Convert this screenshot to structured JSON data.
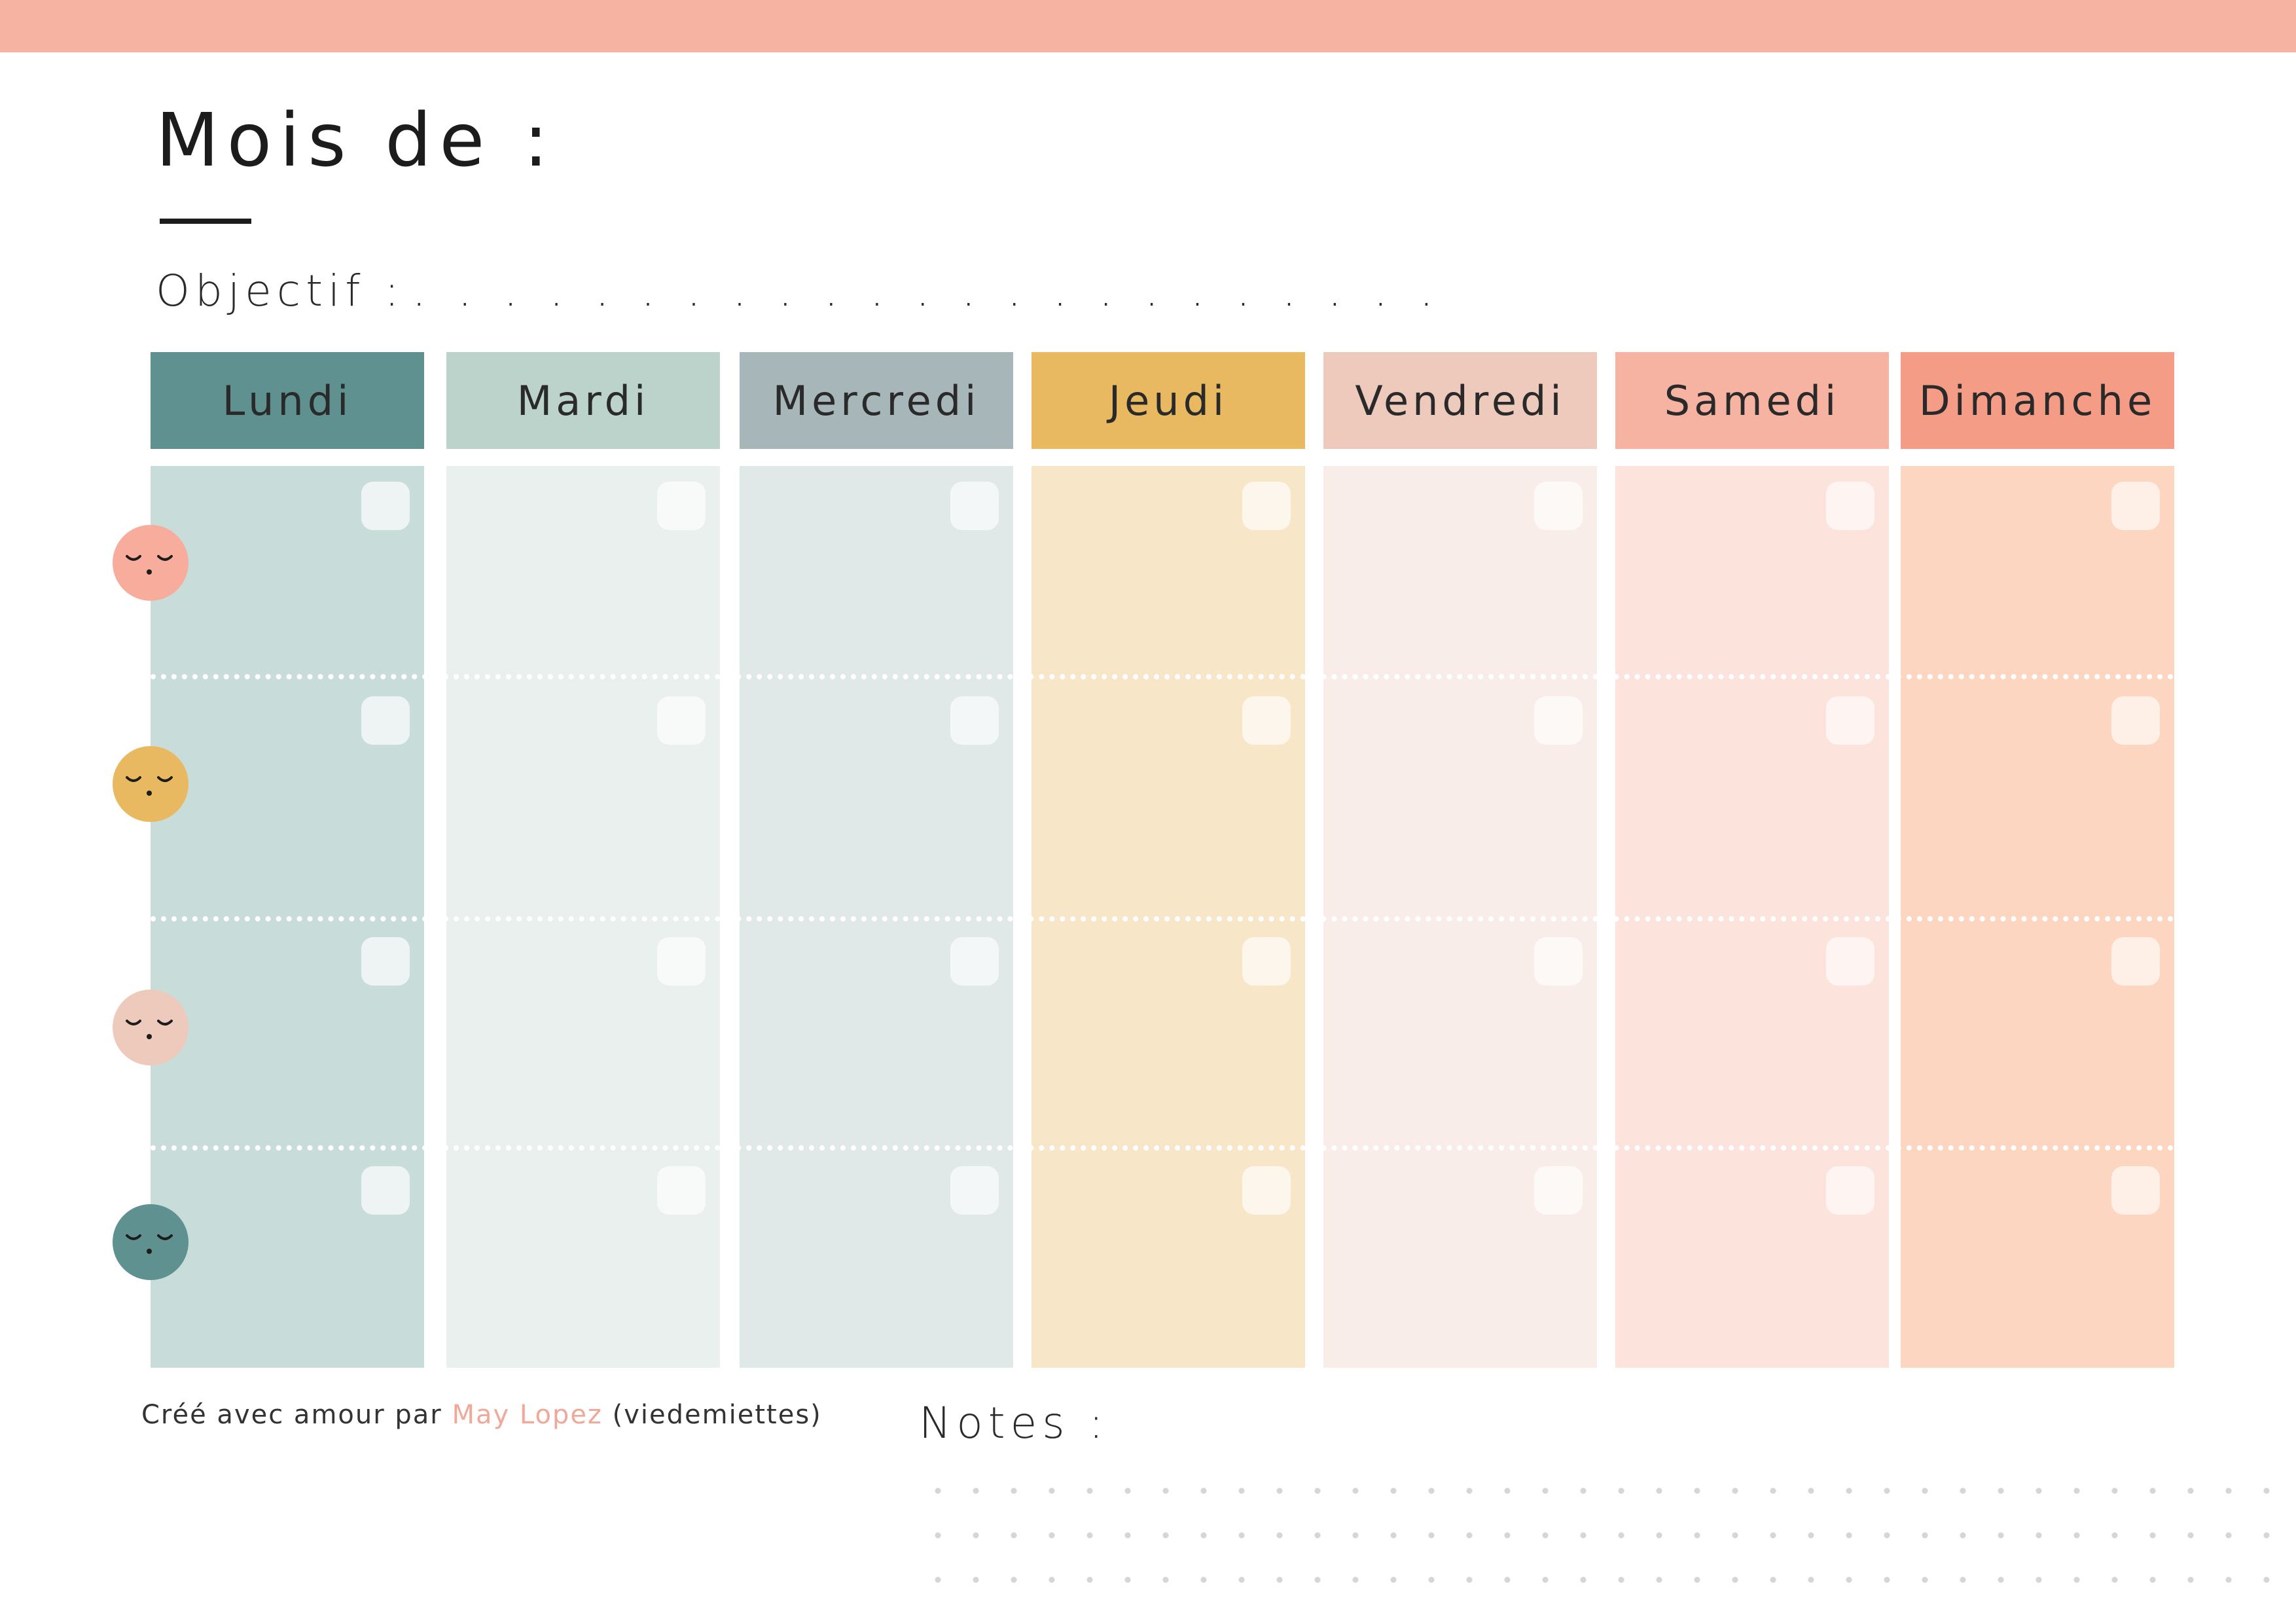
{
  "header": {
    "title": "Mois de :",
    "objective_label": "Objectif :",
    "objective_dots": ". . . . . . . . . . . . . . . . . . . . . . ."
  },
  "days": [
    {
      "label": "Lundi",
      "header_color": "#5e9190",
      "body_color": "#c8dcda",
      "box_color": "#eef4f3"
    },
    {
      "label": "Mardi",
      "header_color": "#bcd3cc",
      "body_color": "#eaf0ee",
      "box_color": "#f8faf9"
    },
    {
      "label": "Mercredi",
      "header_color": "#a7b6b9",
      "body_color": "#e1e8e8",
      "box_color": "#f4f7f7"
    },
    {
      "label": "Jeudi",
      "header_color": "#e9b962",
      "body_color": "#f8e6c9",
      "box_color": "#fdf6ec"
    },
    {
      "label": "Vendredi",
      "header_color": "#eecabd",
      "body_color": "#f9ede9",
      "box_color": "#fdf9f7"
    },
    {
      "label": "Samedi",
      "header_color": "#f7b3a2",
      "body_color": "#fce3dc",
      "box_color": "#fef4f1"
    },
    {
      "label": "Dimanche",
      "header_color": "#f59c86",
      "body_color": "#fcd6c0",
      "box_color": "#fef0e6"
    }
  ],
  "faces": [
    {
      "name": "pink-face",
      "color": "#f7ac9c"
    },
    {
      "name": "yellow-face",
      "color": "#e9b962"
    },
    {
      "name": "blush-face",
      "color": "#eecabd"
    },
    {
      "name": "teal-face",
      "color": "#5e9190"
    }
  ],
  "footer": {
    "credit_prefix": "Créé avec amour par",
    "credit_author": "May Lopez",
    "credit_suffix": "(viedemiettes)",
    "notes_label": "Notes :"
  }
}
